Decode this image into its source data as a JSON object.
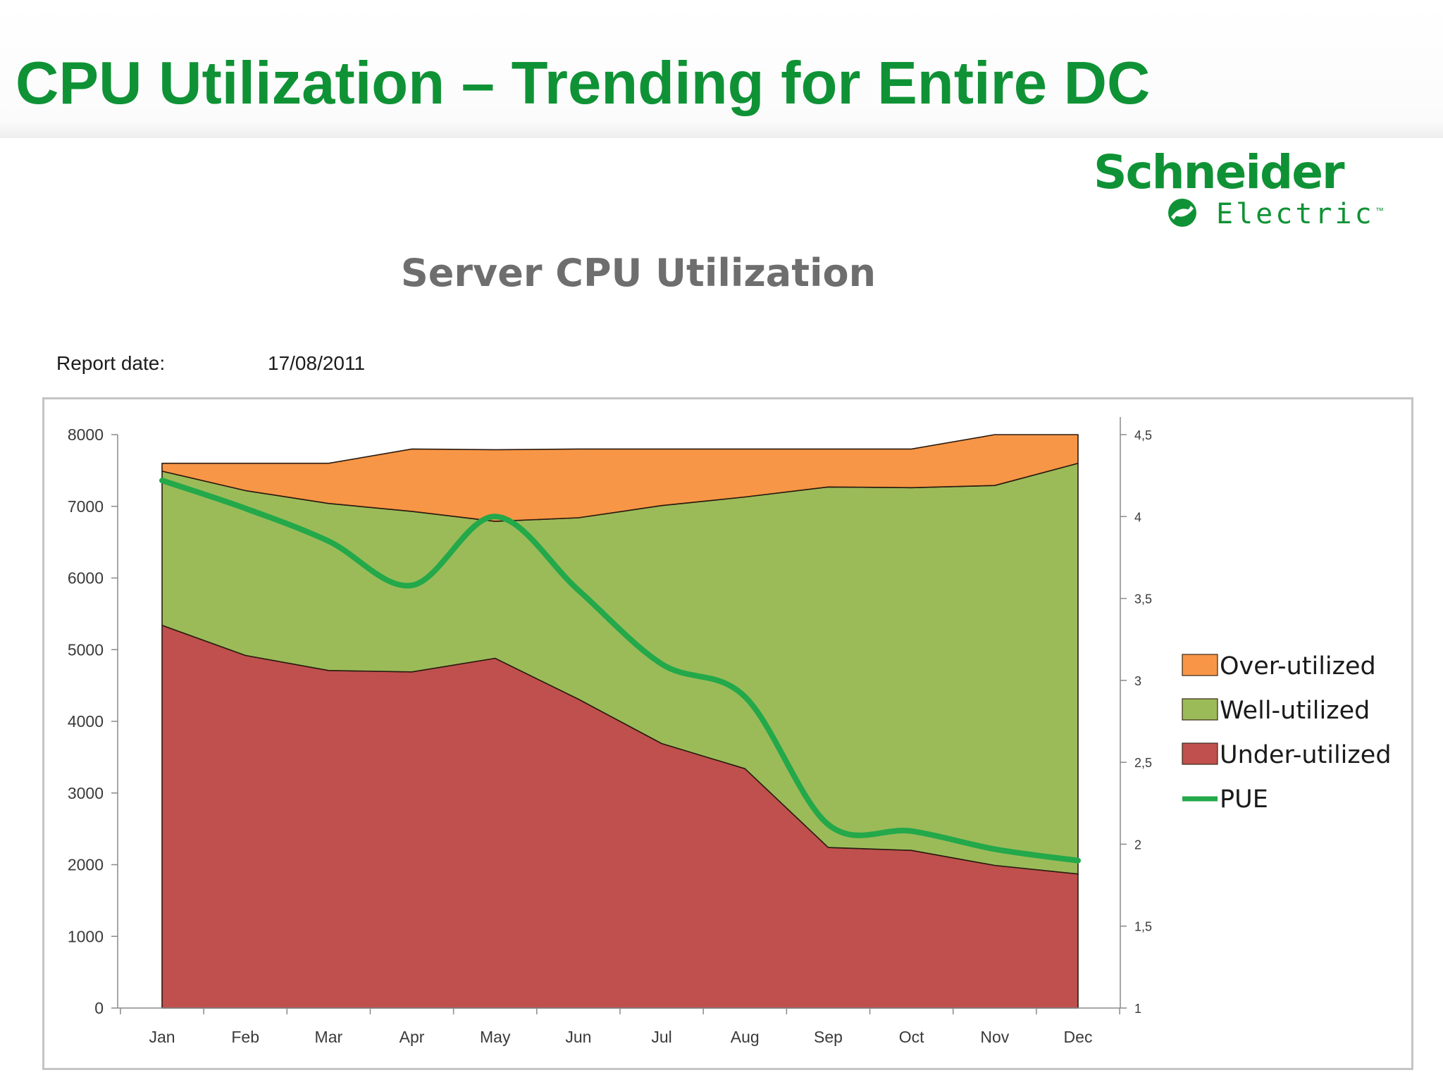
{
  "page": {
    "title": "CPU Utilization – Trending for Entire DC",
    "logo": {
      "line1": "Schneider",
      "line2": "Electric"
    },
    "report": {
      "label": "Report date:",
      "value": "17/08/2011"
    }
  },
  "colors": {
    "title_green": "#0f9235",
    "over": "#f79646",
    "well": "#9bbb59",
    "under": "#c0504d",
    "pue": "#23a84a"
  },
  "chart_data": {
    "type": "area",
    "title": "Server CPU Utilization",
    "categories": [
      "Jan",
      "Feb",
      "Mar",
      "Apr",
      "May",
      "Jun",
      "Jul",
      "Aug",
      "Sep",
      "Oct",
      "Nov",
      "Dec"
    ],
    "series": [
      {
        "name": "Under-utilized",
        "kind": "stacked-area",
        "axis": "left",
        "color": "#c0504d",
        "values": [
          5340,
          4920,
          4710,
          4690,
          4880,
          4310,
          3690,
          3340,
          2240,
          2200,
          1990,
          1870
        ]
      },
      {
        "name": "Well-utilized",
        "kind": "stacked-area",
        "axis": "left",
        "color": "#9bbb59",
        "values": [
          2150,
          2300,
          2330,
          2240,
          1910,
          2530,
          3320,
          3790,
          5030,
          5060,
          5300,
          5730
        ]
      },
      {
        "name": "Over-utilized",
        "kind": "stacked-area",
        "axis": "left",
        "color": "#f79646",
        "values": [
          110,
          380,
          560,
          870,
          1000,
          960,
          790,
          670,
          530,
          540,
          710,
          400
        ]
      },
      {
        "name": "PUE",
        "kind": "line",
        "axis": "right",
        "color": "#23a84a",
        "values": [
          4.22,
          4.05,
          3.85,
          3.58,
          4.0,
          3.55,
          3.1,
          2.9,
          2.12,
          2.08,
          1.97,
          1.9
        ]
      }
    ],
    "y_left": {
      "min": 0,
      "max": 8000,
      "ticks": [
        "0",
        "1000",
        "2000",
        "3000",
        "4000",
        "5000",
        "6000",
        "7000",
        "8000"
      ]
    },
    "y_right": {
      "min": 1,
      "max": 4.5,
      "ticks": [
        "1",
        "1,5",
        "2",
        "2,5",
        "3",
        "3,5",
        "4",
        "4,5"
      ]
    },
    "legend": {
      "position": "right",
      "items": [
        {
          "label": "Over-utilized",
          "color": "#f79646",
          "kind": "box"
        },
        {
          "label": "Well-utilized",
          "color": "#9bbb59",
          "kind": "box"
        },
        {
          "label": "Under-utilized",
          "color": "#c0504d",
          "kind": "box"
        },
        {
          "label": "PUE",
          "color": "#23a84a",
          "kind": "line"
        }
      ]
    },
    "grid": false
  }
}
